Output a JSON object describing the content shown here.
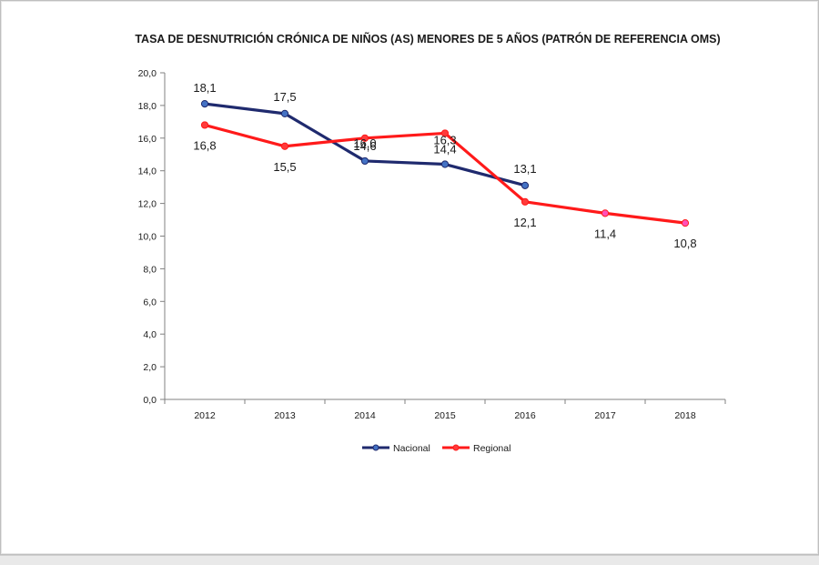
{
  "chart_data": {
    "type": "line",
    "title": "TASA DE DESNUTRICIÓN CRÓNICA DE NIÑOS (AS) MENORES DE 5 AÑOS (PATRÓN DE REFERENCIA OMS)",
    "categories": [
      "2012",
      "2013",
      "2014",
      "2015",
      "2016",
      "2017",
      "2018"
    ],
    "ylim": [
      0,
      20
    ],
    "yticks": [
      "0,0",
      "2,0",
      "4,0",
      "6,0",
      "8,0",
      "10,0",
      "12,0",
      "14,0",
      "16,0",
      "18,0",
      "20,0"
    ],
    "grid": false,
    "legend_position": "bottom",
    "series": [
      {
        "name": "Nacional",
        "color": "#1f2a6e",
        "marker_color": "#4472c4",
        "values": [
          18.1,
          17.5,
          14.6,
          14.4,
          13.1,
          null,
          null
        ],
        "labels": [
          "18,1",
          "17,5",
          "14,6",
          "14,4",
          "13,1",
          "",
          ""
        ]
      },
      {
        "name": "Regional",
        "color": "#ff1a1a",
        "marker_color": "#ff3b3b",
        "values": [
          16.8,
          15.5,
          16.0,
          16.3,
          12.1,
          11.4,
          10.8
        ],
        "labels": [
          "16,8",
          "15,5",
          "16,0",
          "16,3",
          "12,1",
          "11,4",
          "10,8"
        ]
      }
    ]
  }
}
